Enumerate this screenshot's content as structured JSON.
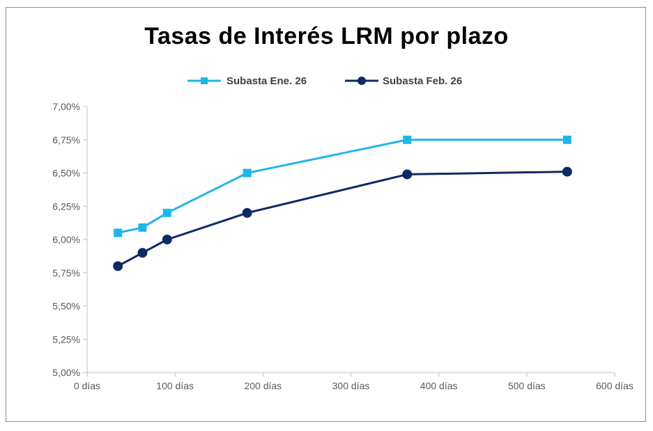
{
  "chart_data": {
    "type": "line",
    "title": "Tasas de Interés LRM por plazo",
    "xlabel": "",
    "ylabel": "",
    "xlim": [
      0,
      600
    ],
    "ylim": [
      5.0,
      7.0
    ],
    "x_ticks": [
      0,
      100,
      200,
      300,
      400,
      500,
      600
    ],
    "x_tick_labels": [
      "0 días",
      "100 días",
      "200 días",
      "300 días",
      "400 días",
      "500 días",
      "600 días"
    ],
    "y_ticks": [
      5.0,
      5.25,
      5.5,
      5.75,
      6.0,
      6.25,
      6.5,
      6.75,
      7.0
    ],
    "y_tick_labels": [
      "5,00%",
      "5,25%",
      "5,50%",
      "5,75%",
      "6,00%",
      "6,25%",
      "6,50%",
      "6,75%",
      "7,00%"
    ],
    "grid": false,
    "legend_position": "top-center",
    "series": [
      {
        "name": "Subasta Ene. 26",
        "color": "#1fb5e9",
        "marker": "square",
        "points": [
          {
            "x": 35,
            "y": 6.05
          },
          {
            "x": 63,
            "y": 6.09
          },
          {
            "x": 91,
            "y": 6.2
          },
          {
            "x": 182,
            "y": 6.5
          },
          {
            "x": 364,
            "y": 6.75
          },
          {
            "x": 546,
            "y": 6.75
          }
        ]
      },
      {
        "name": "Subasta Feb. 26",
        "color": "#0d2a63",
        "marker": "circle",
        "points": [
          {
            "x": 35,
            "y": 5.8
          },
          {
            "x": 63,
            "y": 5.9
          },
          {
            "x": 91,
            "y": 6.0
          },
          {
            "x": 182,
            "y": 6.2
          },
          {
            "x": 364,
            "y": 6.49
          },
          {
            "x": 546,
            "y": 6.51
          }
        ]
      }
    ]
  }
}
